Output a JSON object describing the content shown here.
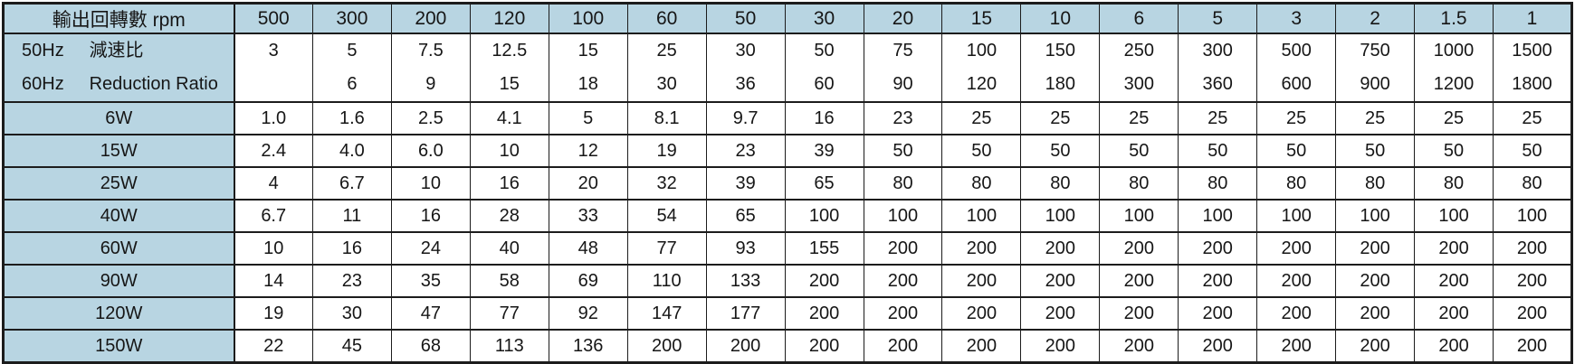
{
  "colors": {
    "header_bg": "#b8d5e2",
    "border": "#1c1c1c"
  },
  "table": {
    "header": {
      "label": "輸出回轉數 rpm",
      "columns": [
        "500",
        "300",
        "200",
        "120",
        "100",
        "60",
        "50",
        "30",
        "20",
        "15",
        "10",
        "6",
        "5",
        "3",
        "2",
        "1.5",
        "1"
      ]
    },
    "ratio": {
      "rows": [
        {
          "freq": "50Hz",
          "name": "減速比",
          "values": [
            "3",
            "5",
            "7.5",
            "12.5",
            "15",
            "25",
            "30",
            "50",
            "75",
            "100",
            "150",
            "250",
            "300",
            "500",
            "750",
            "1000",
            "1500"
          ]
        },
        {
          "freq": "60Hz",
          "name": "Reduction Ratio",
          "values": [
            "",
            "6",
            "9",
            "15",
            "18",
            "30",
            "36",
            "60",
            "90",
            "120",
            "180",
            "300",
            "360",
            "600",
            "900",
            "1200",
            "1800"
          ]
        }
      ]
    },
    "power_rows": [
      {
        "label": "6W",
        "values": [
          "1.0",
          "1.6",
          "2.5",
          "4.1",
          "5",
          "8.1",
          "9.7",
          "16",
          "23",
          "25",
          "25",
          "25",
          "25",
          "25",
          "25",
          "25",
          "25"
        ]
      },
      {
        "label": "15W",
        "values": [
          "2.4",
          "4.0",
          "6.0",
          "10",
          "12",
          "19",
          "23",
          "39",
          "50",
          "50",
          "50",
          "50",
          "50",
          "50",
          "50",
          "50",
          "50"
        ]
      },
      {
        "label": "25W",
        "values": [
          "4",
          "6.7",
          "10",
          "16",
          "20",
          "32",
          "39",
          "65",
          "80",
          "80",
          "80",
          "80",
          "80",
          "80",
          "80",
          "80",
          "80"
        ]
      },
      {
        "label": "40W",
        "values": [
          "6.7",
          "11",
          "16",
          "28",
          "33",
          "54",
          "65",
          "100",
          "100",
          "100",
          "100",
          "100",
          "100",
          "100",
          "100",
          "100",
          "100"
        ]
      },
      {
        "label": "60W",
        "values": [
          "10",
          "16",
          "24",
          "40",
          "48",
          "77",
          "93",
          "155",
          "200",
          "200",
          "200",
          "200",
          "200",
          "200",
          "200",
          "200",
          "200"
        ]
      },
      {
        "label": "90W",
        "values": [
          "14",
          "23",
          "35",
          "58",
          "69",
          "110",
          "133",
          "200",
          "200",
          "200",
          "200",
          "200",
          "200",
          "200",
          "200",
          "200",
          "200"
        ]
      },
      {
        "label": "120W",
        "values": [
          "19",
          "30",
          "47",
          "77",
          "92",
          "147",
          "177",
          "200",
          "200",
          "200",
          "200",
          "200",
          "200",
          "200",
          "200",
          "200",
          "200"
        ]
      },
      {
        "label": "150W",
        "values": [
          "22",
          "45",
          "68",
          "113",
          "136",
          "200",
          "200",
          "200",
          "200",
          "200",
          "200",
          "200",
          "200",
          "200",
          "200",
          "200",
          "200"
        ]
      }
    ]
  }
}
